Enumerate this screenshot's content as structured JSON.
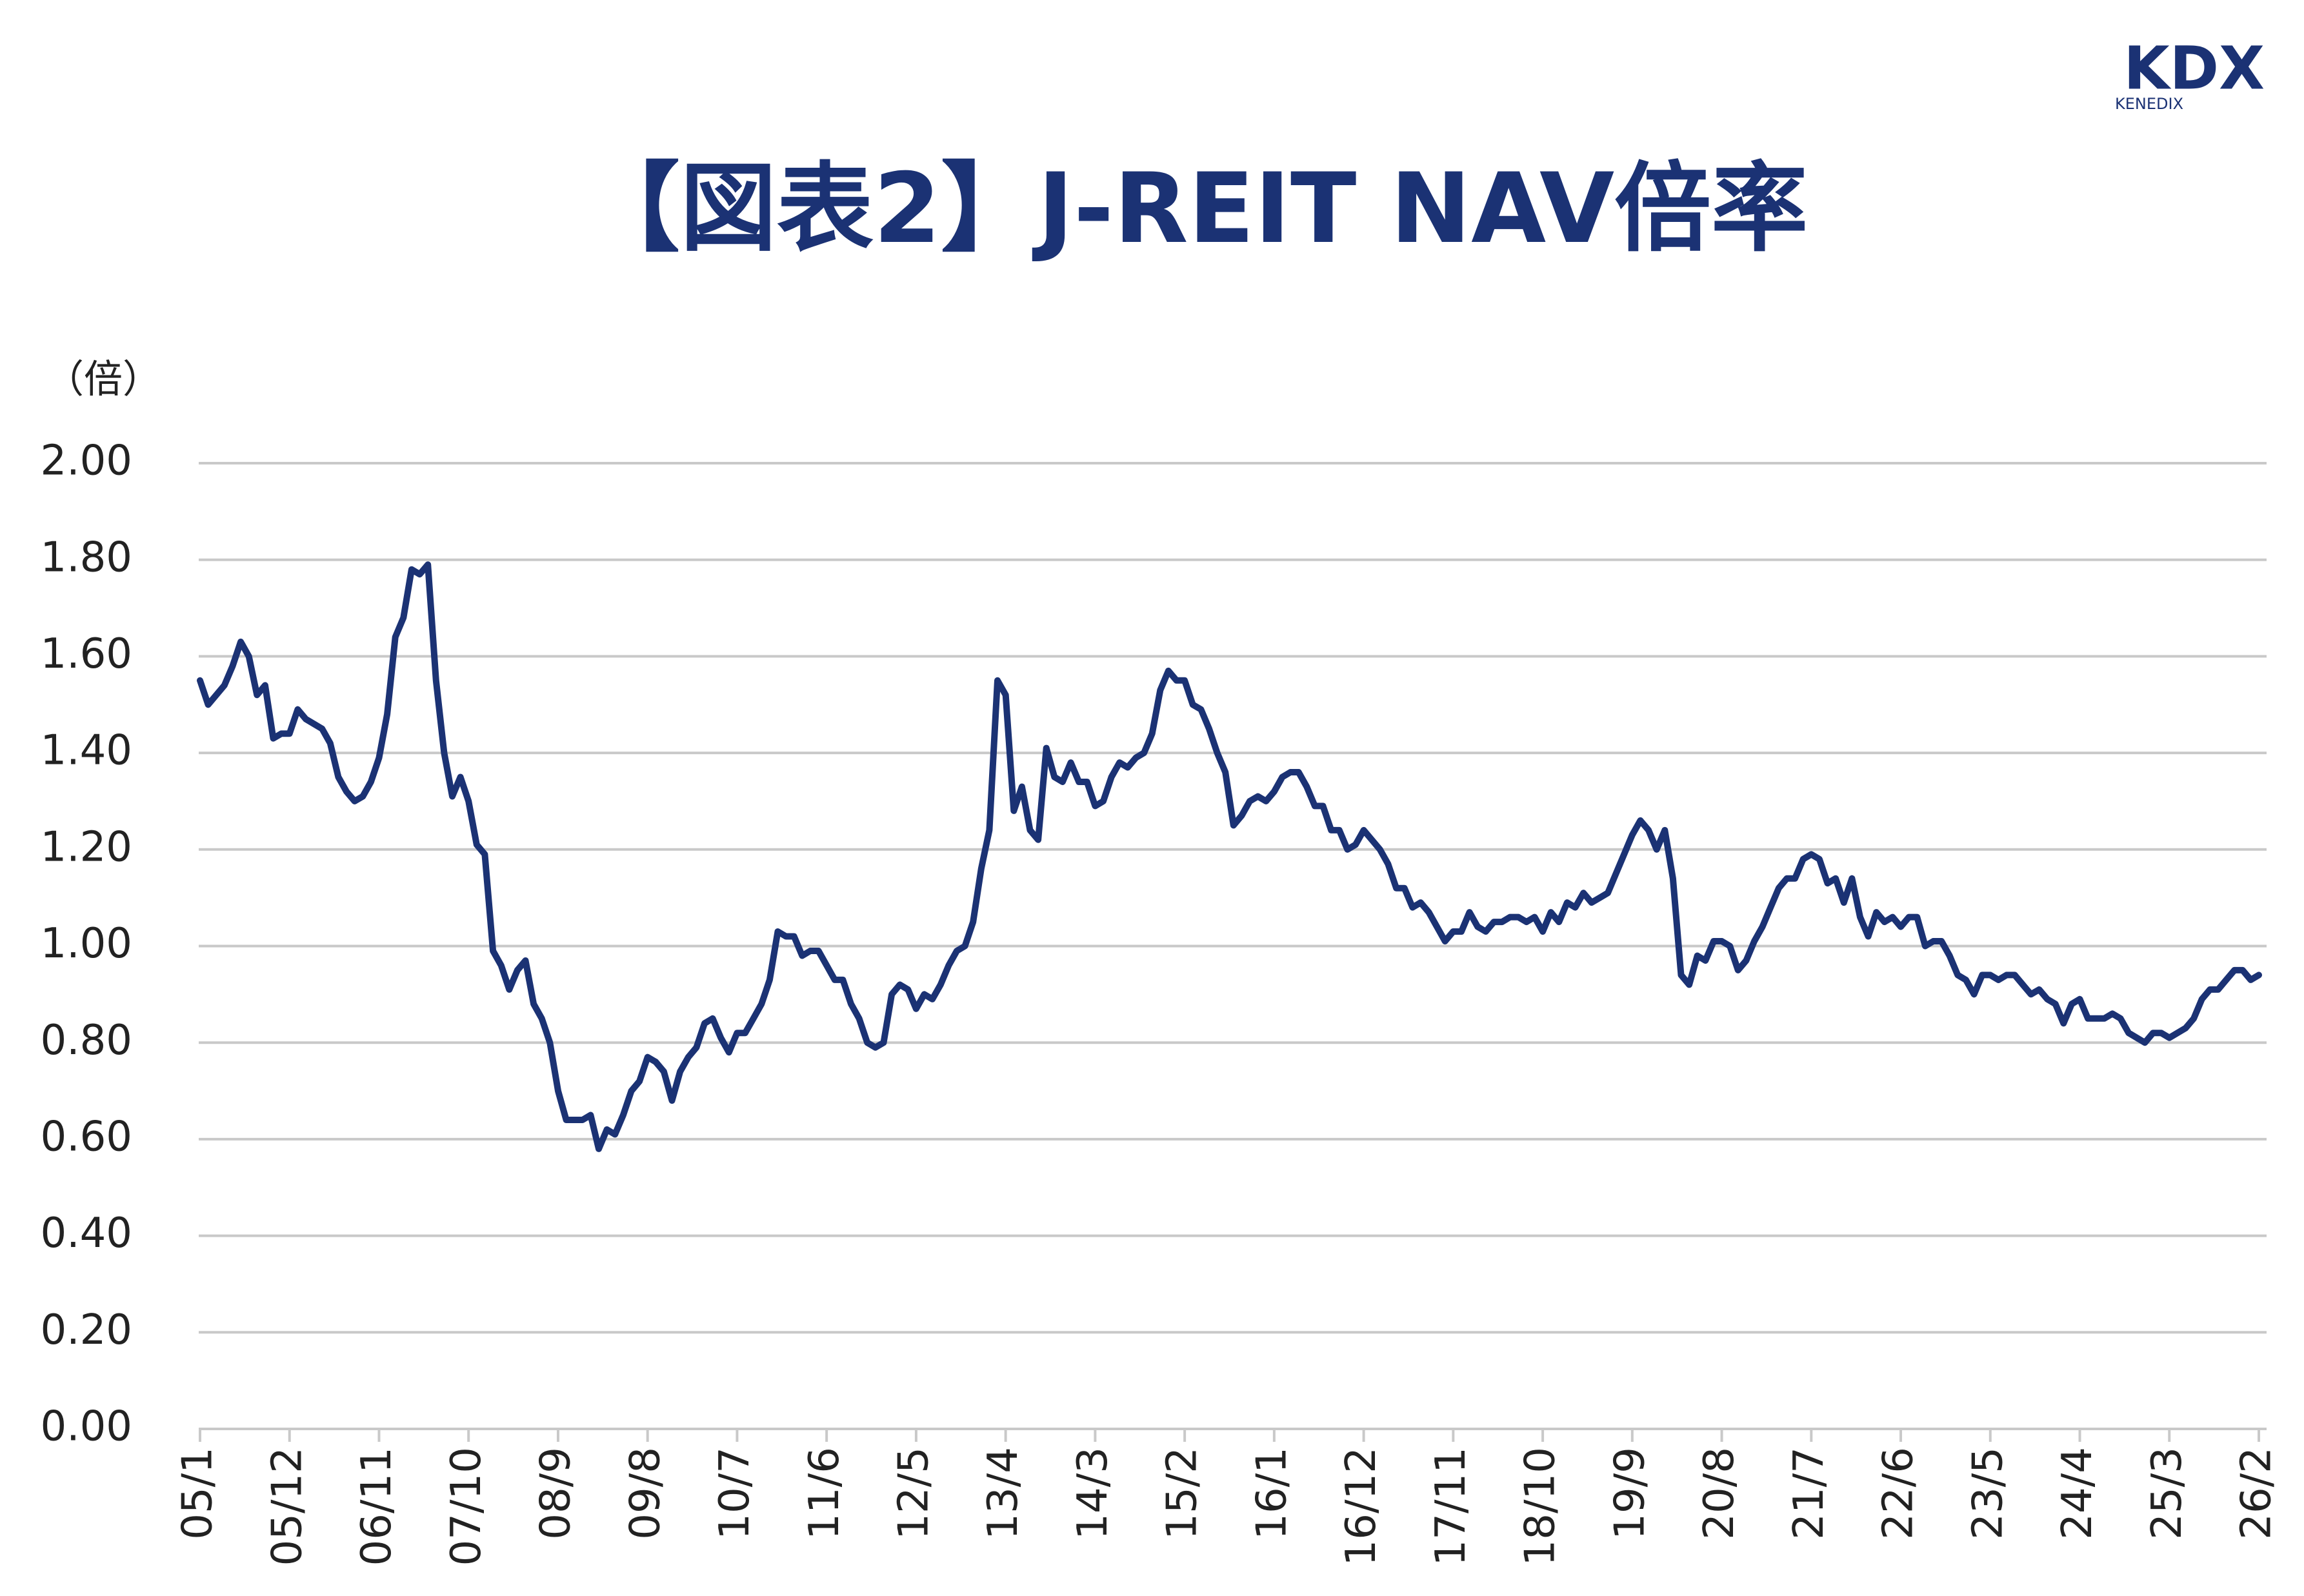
{
  "chart_data": {
    "type": "line",
    "title": "【図表2】J-REIT NAV倍率",
    "y_label": "（倍）",
    "logo": {
      "mark": "KDX",
      "name": "KENEDIX"
    },
    "color": "#1b3274",
    "grid": true,
    "ylim": [
      0,
      2
    ],
    "yticks": [
      {
        "value": 0,
        "label": "0.00"
      },
      {
        "value": 0.2,
        "label": "0.20"
      },
      {
        "value": 0.4,
        "label": "0.40"
      },
      {
        "value": 0.6,
        "label": "0.60"
      },
      {
        "value": 0.8,
        "label": "0.80"
      },
      {
        "value": 1,
        "label": "1.00"
      },
      {
        "value": 1.2,
        "label": "1.20"
      },
      {
        "value": 1.4,
        "label": "1.40"
      },
      {
        "value": 1.6,
        "label": "1.60"
      },
      {
        "value": 1.8,
        "label": "1.80"
      },
      {
        "value": 2,
        "label": "2.00"
      }
    ],
    "categories": [
      "05/1",
      null,
      null,
      null,
      null,
      null,
      null,
      null,
      null,
      null,
      null,
      "05/12",
      null,
      null,
      null,
      null,
      null,
      null,
      null,
      null,
      null,
      null,
      "06/11",
      null,
      null,
      null,
      null,
      null,
      null,
      null,
      null,
      null,
      null,
      "07/10",
      null,
      null,
      null,
      null,
      null,
      null,
      null,
      null,
      null,
      null,
      "08/9",
      null,
      null,
      null,
      null,
      null,
      null,
      null,
      null,
      null,
      null,
      "09/8",
      null,
      null,
      null,
      null,
      null,
      null,
      null,
      null,
      null,
      null,
      "10/7",
      null,
      null,
      null,
      null,
      null,
      null,
      null,
      null,
      null,
      null,
      "11/6",
      null,
      null,
      null,
      null,
      null,
      null,
      null,
      null,
      null,
      null,
      "12/5",
      null,
      null,
      null,
      null,
      null,
      null,
      null,
      null,
      null,
      null,
      "13/4",
      null,
      null,
      null,
      null,
      null,
      null,
      null,
      null,
      null,
      null,
      "14/3",
      null,
      null,
      null,
      null,
      null,
      null,
      null,
      null,
      null,
      null,
      "15/2",
      null,
      null,
      null,
      null,
      null,
      null,
      null,
      null,
      null,
      null,
      "16/1",
      null,
      null,
      null,
      null,
      null,
      null,
      null,
      null,
      null,
      null,
      "16/12",
      null,
      null,
      null,
      null,
      null,
      null,
      null,
      null,
      null,
      null,
      "17/11",
      null,
      null,
      null,
      null,
      null,
      null,
      null,
      null,
      null,
      null,
      "18/10",
      null,
      null,
      null,
      null,
      null,
      null,
      null,
      null,
      null,
      null,
      "19/9",
      null,
      null,
      null,
      null,
      null,
      null,
      null,
      null,
      null,
      null,
      "20/8",
      null,
      null,
      null,
      null,
      null,
      null,
      null,
      null,
      null,
      null,
      "21/7",
      null,
      null,
      null,
      null,
      null,
      null,
      null,
      null,
      null,
      null,
      "22/6",
      null,
      null,
      null,
      null,
      null,
      null,
      null,
      null,
      null,
      null,
      "23/5",
      null,
      null,
      null,
      null,
      null,
      null,
      null,
      null,
      null,
      null,
      "24/4",
      null,
      null,
      null,
      null,
      null,
      null,
      null,
      null,
      null,
      null,
      "25/3",
      null,
      null,
      null,
      null,
      null,
      null,
      null,
      null,
      null,
      null,
      "26/2"
    ],
    "values": [
      1.55,
      1.5,
      1.52,
      1.54,
      1.58,
      1.63,
      1.6,
      1.52,
      1.54,
      1.43,
      1.44,
      1.44,
      1.49,
      1.47,
      1.46,
      1.45,
      1.42,
      1.35,
      1.32,
      1.3,
      1.31,
      1.34,
      1.39,
      1.48,
      1.64,
      1.68,
      1.78,
      1.77,
      1.79,
      1.55,
      1.4,
      1.31,
      1.35,
      1.3,
      1.21,
      1.19,
      0.99,
      0.96,
      0.91,
      0.95,
      0.97,
      0.88,
      0.85,
      0.8,
      0.7,
      0.64,
      0.64,
      0.64,
      0.65,
      0.58,
      0.62,
      0.61,
      0.65,
      0.7,
      0.72,
      0.77,
      0.76,
      0.74,
      0.68,
      0.74,
      0.77,
      0.79,
      0.84,
      0.85,
      0.81,
      0.78,
      0.82,
      0.82,
      0.85,
      0.88,
      0.93,
      1.03,
      1.02,
      1.02,
      0.98,
      0.99,
      0.99,
      0.96,
      0.93,
      0.93,
      0.88,
      0.85,
      0.8,
      0.79,
      0.8,
      0.9,
      0.92,
      0.91,
      0.87,
      0.9,
      0.89,
      0.92,
      0.96,
      0.99,
      1.0,
      1.05,
      1.16,
      1.24,
      1.55,
      1.52,
      1.28,
      1.33,
      1.24,
      1.22,
      1.41,
      1.35,
      1.34,
      1.38,
      1.34,
      1.34,
      1.29,
      1.3,
      1.35,
      1.38,
      1.37,
      1.39,
      1.4,
      1.44,
      1.53,
      1.57,
      1.55,
      1.55,
      1.5,
      1.49,
      1.45,
      1.4,
      1.36,
      1.25,
      1.27,
      1.3,
      1.31,
      1.3,
      1.32,
      1.35,
      1.36,
      1.36,
      1.33,
      1.29,
      1.29,
      1.24,
      1.24,
      1.2,
      1.21,
      1.24,
      1.22,
      1.2,
      1.17,
      1.12,
      1.12,
      1.08,
      1.09,
      1.07,
      1.04,
      1.01,
      1.03,
      1.03,
      1.07,
      1.04,
      1.03,
      1.05,
      1.05,
      1.06,
      1.06,
      1.05,
      1.06,
      1.03,
      1.07,
      1.05,
      1.09,
      1.08,
      1.11,
      1.09,
      1.1,
      1.11,
      1.15,
      1.19,
      1.23,
      1.26,
      1.24,
      1.2,
      1.24,
      1.14,
      0.94,
      0.92,
      0.98,
      0.97,
      1.01,
      1.01,
      1.0,
      0.95,
      0.97,
      1.01,
      1.04,
      1.08,
      1.12,
      1.14,
      1.14,
      1.18,
      1.19,
      1.18,
      1.13,
      1.14,
      1.09,
      1.14,
      1.06,
      1.02,
      1.07,
      1.05,
      1.06,
      1.04,
      1.06,
      1.06,
      1.0,
      1.01,
      1.01,
      0.98,
      0.94,
      0.93,
      0.9,
      0.94,
      0.94,
      0.93,
      0.94,
      0.94,
      0.92,
      0.9,
      0.91,
      0.89,
      0.88,
      0.84,
      0.88,
      0.89,
      0.85,
      0.85,
      0.85,
      0.86,
      0.85,
      0.82,
      0.81,
      0.8,
      0.82,
      0.82,
      0.81,
      0.82,
      0.83,
      0.85,
      0.89,
      0.91,
      0.91,
      0.93,
      0.95,
      0.95,
      0.93,
      0.94
    ]
  }
}
